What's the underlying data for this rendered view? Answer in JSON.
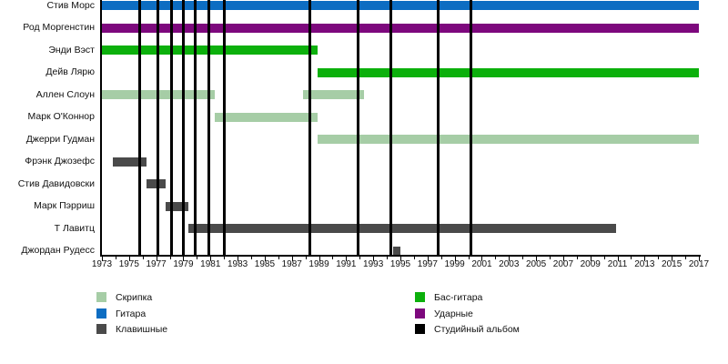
{
  "chart_data": {
    "type": "gantt",
    "description": "Band members timeline with instrument color bars and studio album markers",
    "x_axis": {
      "min": 1973,
      "max": 2017,
      "label_step": 2,
      "minor_tick_step": 1,
      "tick_labels": [
        "1973",
        "1975",
        "1977",
        "1979",
        "1981",
        "1983",
        "1985",
        "1987",
        "1989",
        "1991",
        "1993",
        "1995",
        "1997",
        "1999",
        "2001",
        "2003",
        "2005",
        "2007",
        "2009",
        "2011",
        "2013",
        "2015",
        "2017"
      ]
    },
    "members": [
      {
        "name": "Стив Морс",
        "instrument": "Гитара",
        "color": "guitar",
        "segments": [
          [
            1973,
            2017
          ]
        ]
      },
      {
        "name": "Род Моргенстин",
        "instrument": "Ударные",
        "color": "drums",
        "segments": [
          [
            1973,
            2017
          ]
        ]
      },
      {
        "name": "Энди Вэст",
        "instrument": "Бас-гитара",
        "color": "bass",
        "segments": [
          [
            1973,
            1988.9
          ]
        ]
      },
      {
        "name": "Дейв Лярю",
        "instrument": "Бас-гитара",
        "color": "bass",
        "segments": [
          [
            1988.9,
            2017
          ]
        ]
      },
      {
        "name": "Аллен Слоун",
        "instrument": "Скрипка",
        "color": "violin",
        "segments": [
          [
            1973,
            1981.3
          ],
          [
            1987.8,
            1992.3
          ]
        ]
      },
      {
        "name": "Марк О'Коннор",
        "instrument": "Скрипка",
        "color": "violin",
        "segments": [
          [
            1981.3,
            1988.9
          ]
        ]
      },
      {
        "name": "Джерри Гудман",
        "instrument": "Скрипка",
        "color": "violin",
        "segments": [
          [
            1988.9,
            2017
          ]
        ]
      },
      {
        "name": "Фрэнк Джозефс",
        "instrument": "Клавишные",
        "color": "keys",
        "segments": [
          [
            1973.8,
            1976.3
          ]
        ]
      },
      {
        "name": "Стив Давидовски",
        "instrument": "Клавишные",
        "color": "keys",
        "segments": [
          [
            1976.3,
            1977.7
          ]
        ]
      },
      {
        "name": "Марк Пэрриш",
        "instrument": "Клавишные",
        "color": "keys",
        "segments": [
          [
            1977.7,
            1979.4
          ]
        ]
      },
      {
        "name": "Т Лавитц",
        "instrument": "Клавишные",
        "color": "keys",
        "segments": [
          [
            1979.4,
            2010.9
          ]
        ]
      },
      {
        "name": "Джордан Рудесс",
        "instrument": "Клавишные",
        "color": "keys",
        "segments": [
          [
            1994.45,
            1995.0
          ]
        ]
      }
    ],
    "album_lines": {
      "label": "Студийный альбом",
      "years": [
        1975.8,
        1977.1,
        1978.1,
        1979.0,
        1979.9,
        1980.9,
        1982.0,
        1988.3,
        1991.9,
        1994.3,
        1997.8,
        2000.2
      ]
    }
  },
  "legend": {
    "columns": [
      {
        "items": [
          {
            "label": "Скрипка",
            "color": "violin"
          },
          {
            "label": "Гитара",
            "color": "guitar"
          },
          {
            "label": "Клавишные",
            "color": "keys"
          }
        ]
      },
      {
        "items": [
          {
            "label": "Бас-гитара",
            "color": "bass"
          },
          {
            "label": "Ударные",
            "color": "drums"
          },
          {
            "label": "Студийный альбом",
            "color": "album"
          }
        ]
      }
    ]
  },
  "colors": {
    "violin": "#a6cda6",
    "guitar": "#0d6dc2",
    "keys": "#4a4a4a",
    "bass": "#0cb00c",
    "drums": "#7d087d",
    "album": "#000000",
    "axis": "#000000",
    "text": "#111111"
  }
}
